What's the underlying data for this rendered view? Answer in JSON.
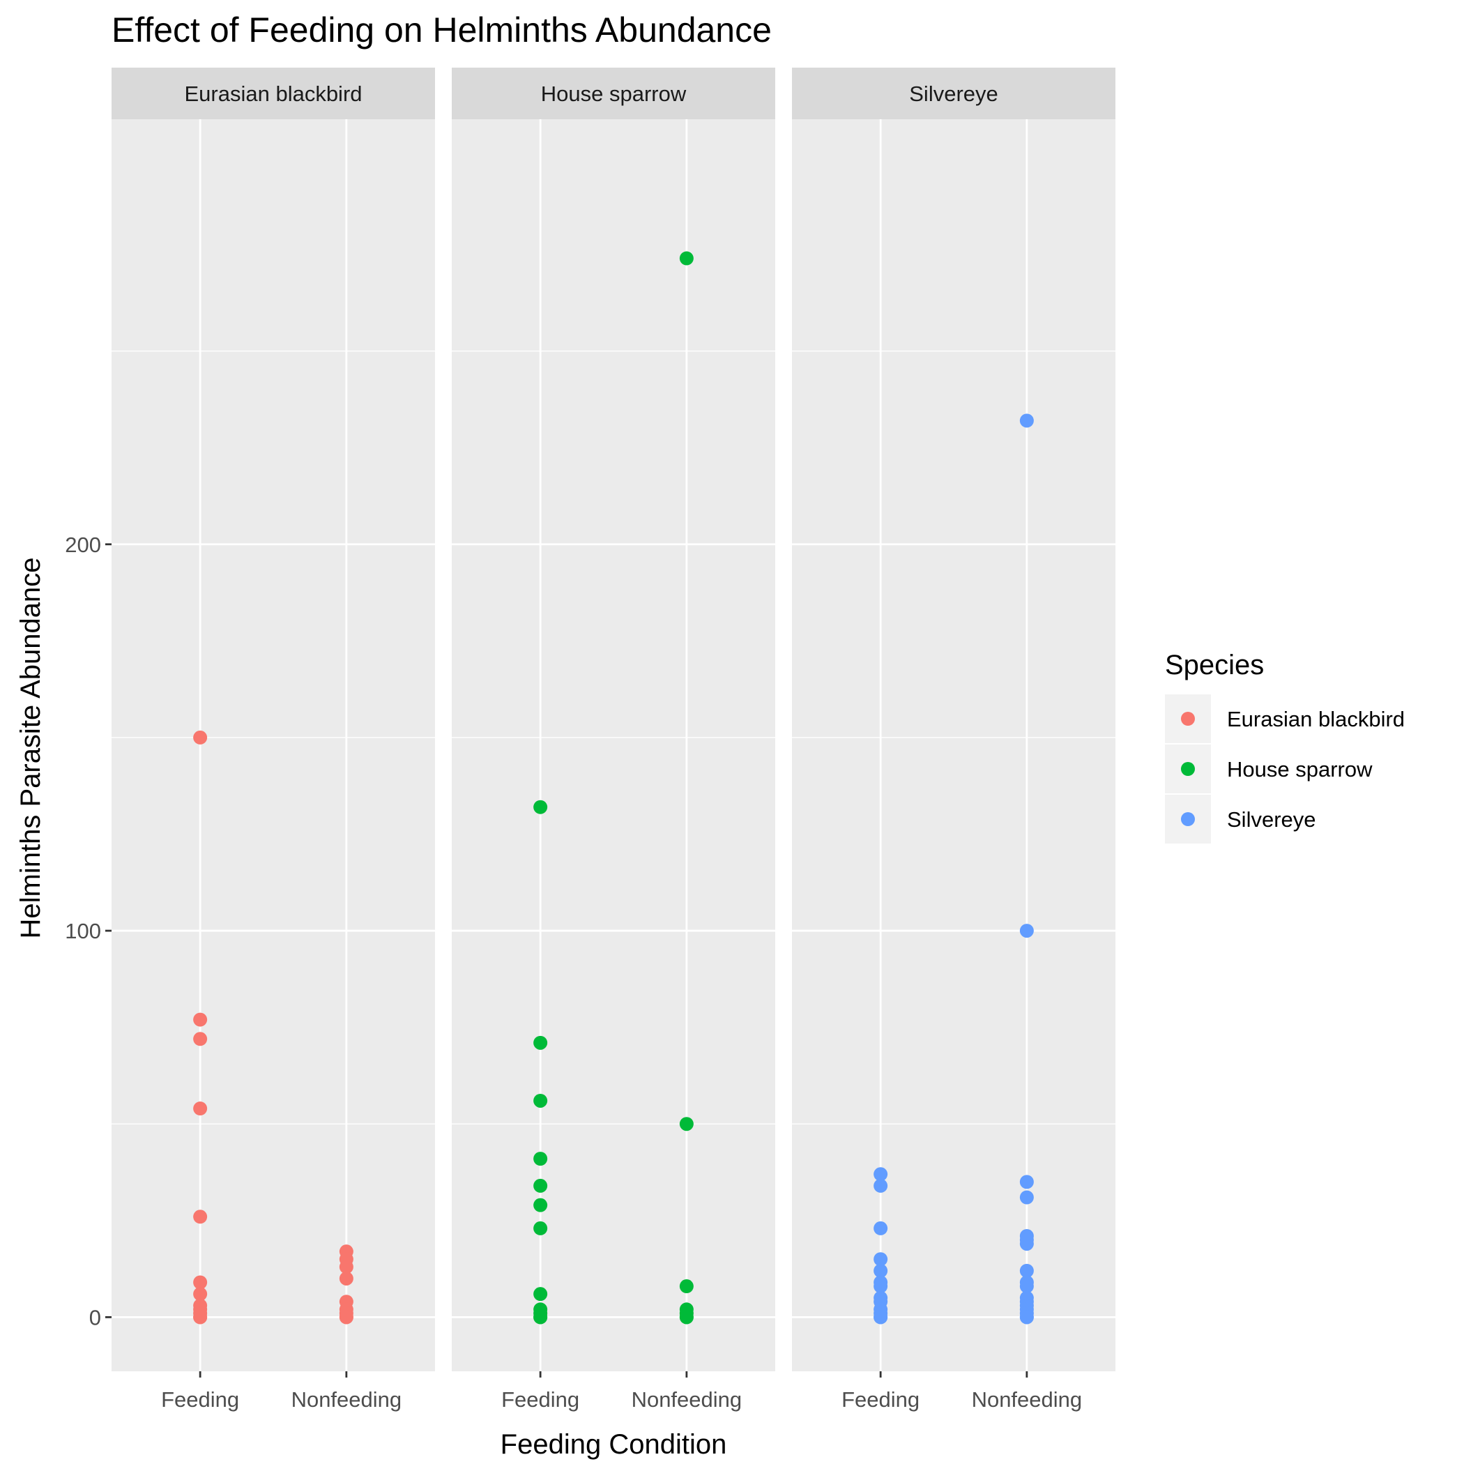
{
  "chart_data": {
    "type": "scatter",
    "title": "Effect of Feeding on Helminths Abundance",
    "xlabel": "Feeding Condition",
    "ylabel": "Helminths Parasite Abundance",
    "categories": [
      "Feeding",
      "Nonfeeding"
    ],
    "ylim": [
      -14,
      310
    ],
    "y_ticks": [
      0,
      100,
      200
    ],
    "y_minor_ticks": [
      50,
      150,
      250
    ],
    "grid": true,
    "legend": {
      "title": "Species",
      "position": "right",
      "entries": [
        "Eurasian blackbird",
        "House sparrow",
        "Silvereye"
      ]
    },
    "colors": {
      "Eurasian blackbird": "#f8766d",
      "House sparrow": "#00ba38",
      "Silvereye": "#619cff",
      "panel_bg": "#ebebeb",
      "strip_bg": "#d9d9d9",
      "grid": "#ffffff"
    },
    "panels": [
      {
        "name": "Eurasian blackbird",
        "points": [
          {
            "x": "Feeding",
            "values": [
              150,
              77,
              72,
              54,
              26,
              9,
              6,
              3,
              2,
              1,
              0,
              0
            ]
          },
          {
            "x": "Nonfeeding",
            "values": [
              17,
              15,
              13,
              10,
              4,
              2,
              1,
              0,
              0
            ]
          }
        ]
      },
      {
        "name": "House sparrow",
        "points": [
          {
            "x": "Feeding",
            "values": [
              132,
              71,
              56,
              41,
              34,
              29,
              23,
              6,
              2,
              1,
              0,
              0
            ]
          },
          {
            "x": "Nonfeeding",
            "values": [
              274,
              50,
              8,
              2,
              1,
              0,
              0
            ]
          }
        ]
      },
      {
        "name": "Silvereye",
        "points": [
          {
            "x": "Feeding",
            "values": [
              37,
              34,
              23,
              15,
              12,
              9,
              8,
              5,
              4,
              2,
              1,
              0,
              0
            ]
          },
          {
            "x": "Nonfeeding",
            "values": [
              232,
              100,
              35,
              31,
              21,
              20,
              19,
              12,
              9,
              8,
              5,
              4,
              3,
              2,
              1,
              0,
              0
            ]
          }
        ]
      }
    ]
  }
}
